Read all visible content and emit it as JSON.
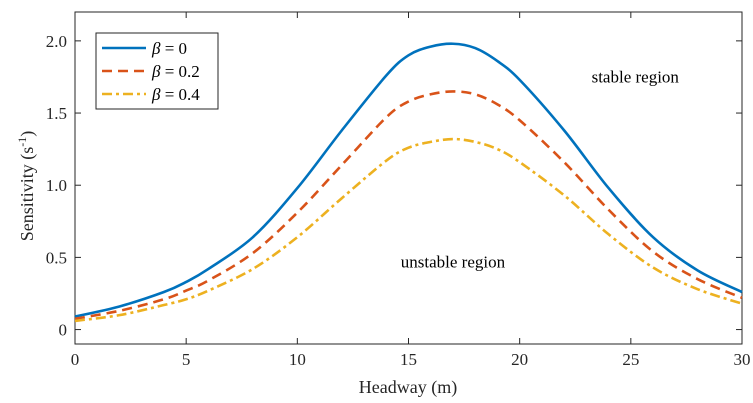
{
  "chart_data": {
    "type": "line",
    "xlabel": "Headway (m)",
    "ylabel_main": "Sensitivity (s",
    "ylabel_sup": "-1",
    "ylabel_close": ")",
    "xlim": [
      0,
      30
    ],
    "ylim": [
      -0.1,
      2.2
    ],
    "xticks": [
      0,
      5,
      10,
      15,
      20,
      25,
      30
    ],
    "xtick_labels": [
      "0",
      "5",
      "10",
      "15",
      "20",
      "25",
      "30"
    ],
    "yticks": [
      0,
      0.5,
      1.0,
      1.5,
      2.0
    ],
    "ytick_labels": [
      "0",
      "0.5",
      "1.0",
      "1.5",
      "2.0"
    ],
    "grid": false,
    "legend_position": "top-left",
    "x": [
      0,
      2,
      4,
      5,
      6,
      8,
      10,
      12,
      14,
      15,
      16,
      17,
      18,
      19,
      20,
      22,
      24,
      26,
      28,
      30
    ],
    "series": [
      {
        "name": "β = 0",
        "legend_symbol": "β",
        "legend_value": " = 0",
        "color": "#0072BD",
        "dash": "solid",
        "values": [
          0.09,
          0.16,
          0.26,
          0.33,
          0.42,
          0.64,
          0.98,
          1.38,
          1.76,
          1.9,
          1.96,
          1.98,
          1.95,
          1.86,
          1.73,
          1.38,
          0.98,
          0.64,
          0.41,
          0.26
        ]
      },
      {
        "name": "β = 0.2",
        "legend_symbol": "β",
        "legend_value": " = 0.2",
        "color": "#D95319",
        "dash": "dashed",
        "values": [
          0.075,
          0.13,
          0.21,
          0.27,
          0.34,
          0.53,
          0.81,
          1.14,
          1.47,
          1.58,
          1.63,
          1.65,
          1.63,
          1.56,
          1.45,
          1.16,
          0.83,
          0.54,
          0.35,
          0.22
        ]
      },
      {
        "name": "β = 0.4",
        "legend_symbol": "β",
        "legend_value": " = 0.4",
        "color": "#EDB120",
        "dash": "dash-dot",
        "values": [
          0.06,
          0.1,
          0.17,
          0.21,
          0.27,
          0.42,
          0.64,
          0.91,
          1.17,
          1.26,
          1.3,
          1.32,
          1.3,
          1.25,
          1.16,
          0.93,
          0.66,
          0.43,
          0.28,
          0.18
        ]
      }
    ],
    "annotations": [
      {
        "text": "stable region",
        "x": 25.2,
        "y": 1.71
      },
      {
        "text": "unstable region",
        "x": 17.0,
        "y": 0.43
      }
    ]
  }
}
